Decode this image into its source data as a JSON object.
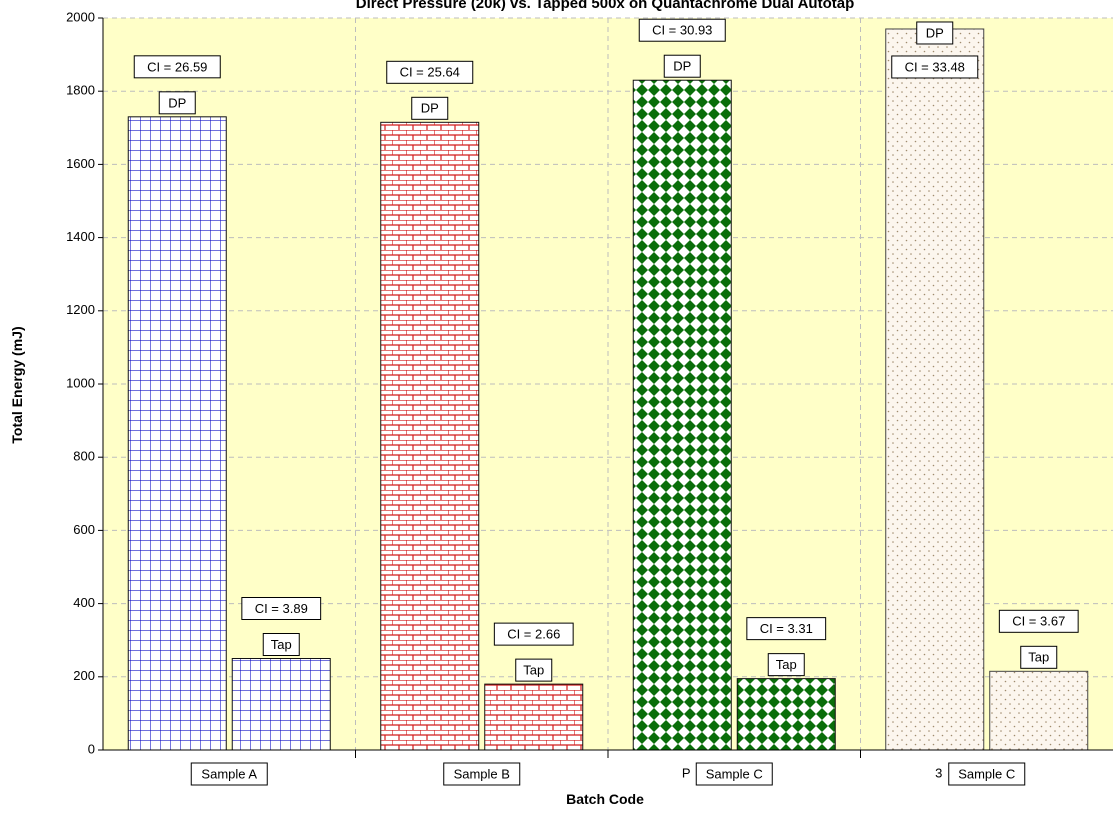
{
  "colors": {
    "plot_background": "#ffffc8",
    "grid": "#bdbdbd",
    "series_a": "#1c1cc8",
    "series_b": "#d21c1c",
    "series_c": "#0a6e0a",
    "series_d": "#a08c6e"
  },
  "chart_data": {
    "type": "bar",
    "title": "Direct Pressure (20k) vs. Tapped 500x on Quantachrome Dual Autotap",
    "xlabel": "Batch Code",
    "ylabel": "Total Energy (mJ)",
    "ylim": [
      0,
      2000
    ],
    "yticks": [
      0,
      200,
      400,
      600,
      800,
      1000,
      1200,
      1400,
      1600,
      1800,
      2000
    ],
    "grid": true,
    "categories": [
      "Sample A",
      "Sample B",
      "Sample C",
      "Sample C"
    ],
    "category_overlap_text": [
      "",
      "",
      "P",
      "3"
    ],
    "bar_patterns": [
      "grid",
      "brick",
      "diamond",
      "dots"
    ],
    "series": [
      {
        "values": [
          1730,
          1715,
          1830,
          1970
        ],
        "bar_labels": [
          "DP",
          "DP",
          "DP",
          "DP"
        ],
        "annotations": [
          "CI = 26.59",
          "CI = 25.64",
          "CI = 30.93",
          "CI = 33.48"
        ]
      },
      {
        "values": [
          250,
          180,
          195,
          215
        ],
        "bar_labels": [
          "Tap",
          "Tap",
          "Tap",
          "Tap"
        ],
        "annotations": [
          "CI = 3.89",
          "CI = 2.66",
          "CI = 3.31",
          "CI = 3.67"
        ]
      }
    ]
  }
}
